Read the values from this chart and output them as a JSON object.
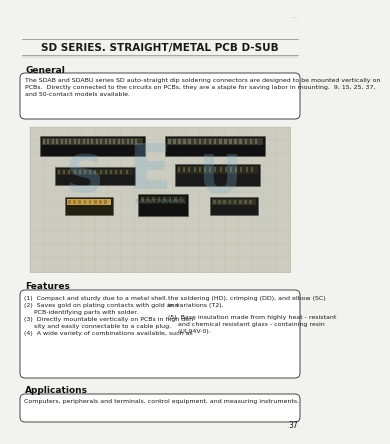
{
  "page_bg": "#f2f2ee",
  "title": "SD SERIES. STRAIGHT/METAL PCB D-SUB",
  "title_fontsize": 7.5,
  "section_general": "General",
  "general_box_text": "The SDAB and SDABU series SD auto-straight dip soldering connectors are designed to be mounted vertically on\nPCBs.  Directly connected to the circuits on PCBs, they are a staple for saving labor in mounting.  9, 15, 25, 37,\nand 50-contact models available.",
  "section_features": "Features",
  "features_left": "(1)  Compact and sturdy due to a metal shell.\n(2)  Saves gold on plating contacts with gold and\n     PCB-identifying parts with solder.\n(3)  Directly mountable vertically on PCBs in high den-\n     sity and easily connectable to a cable plug.\n(4)  A wide variety of combinations available, such as",
  "features_right_top": "the soldering (HD), crimping (DD), and elbow (SC)\nin variations (T2).",
  "features_right_bot": "(5)  Base insulation made from highly heat - resistant\n     and chemical resistant glass - containing resin\n     (UL94V-0).",
  "section_applications": "Applications",
  "applications_text": "Computers, peripherals and terminals, control equipment, and measuring instruments.",
  "page_number": "37",
  "top_line_color": "#999999",
  "box_border_color": "#333333",
  "text_color": "#1a1a1a",
  "section_color": "#111111",
  "small_fontsize": 4.5,
  "section_fontsize": 6.5
}
